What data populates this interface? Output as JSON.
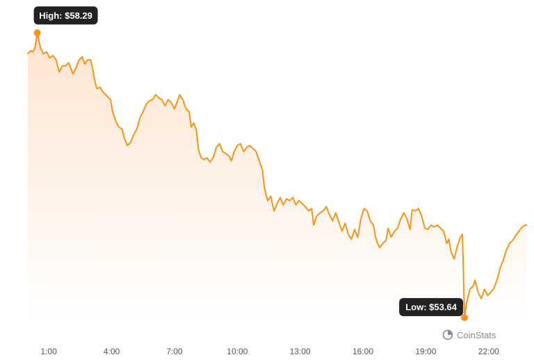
{
  "chart_data": {
    "type": "area",
    "xlabel": "",
    "ylabel": "",
    "x_tick_labels": [
      "1:00",
      "4:00",
      "7:00",
      "10:00",
      "13:00",
      "16:00",
      "19:00",
      "22:00"
    ],
    "x_tick_hours": [
      1,
      4,
      7,
      10,
      13,
      16,
      19,
      22
    ],
    "x_range_hours": [
      0,
      23.8
    ],
    "ylim": [
      53.55,
      58.6
    ],
    "grid": false,
    "line_color": "#f7931a",
    "fill_color": "#fde3cc",
    "series": [
      {
        "points": [
          [
            0.0,
            57.95
          ],
          [
            0.15,
            58.0
          ],
          [
            0.25,
            57.98
          ],
          [
            0.35,
            58.05
          ],
          [
            0.45,
            58.29
          ],
          [
            0.6,
            58.05
          ],
          [
            0.75,
            57.95
          ],
          [
            0.9,
            57.98
          ],
          [
            1.05,
            57.88
          ],
          [
            1.2,
            57.92
          ],
          [
            1.35,
            57.85
          ],
          [
            1.5,
            57.65
          ],
          [
            1.65,
            57.75
          ],
          [
            1.8,
            57.75
          ],
          [
            1.95,
            57.8
          ],
          [
            2.05,
            57.72
          ],
          [
            2.15,
            57.62
          ],
          [
            2.3,
            57.72
          ],
          [
            2.45,
            57.85
          ],
          [
            2.6,
            57.9
          ],
          [
            2.72,
            57.78
          ],
          [
            2.85,
            57.85
          ],
          [
            3.0,
            57.85
          ],
          [
            3.1,
            57.7
          ],
          [
            3.2,
            57.5
          ],
          [
            3.3,
            57.38
          ],
          [
            3.45,
            57.4
          ],
          [
            3.6,
            57.32
          ],
          [
            3.8,
            57.25
          ],
          [
            3.95,
            57.2
          ],
          [
            4.05,
            57.0
          ],
          [
            4.2,
            56.85
          ],
          [
            4.35,
            56.75
          ],
          [
            4.5,
            56.72
          ],
          [
            4.6,
            56.58
          ],
          [
            4.75,
            56.45
          ],
          [
            4.9,
            56.5
          ],
          [
            5.05,
            56.62
          ],
          [
            5.2,
            56.72
          ],
          [
            5.35,
            56.9
          ],
          [
            5.5,
            57.0
          ],
          [
            5.65,
            57.12
          ],
          [
            5.8,
            57.18
          ],
          [
            5.95,
            57.2
          ],
          [
            6.1,
            57.28
          ],
          [
            6.25,
            57.23
          ],
          [
            6.4,
            57.2
          ],
          [
            6.55,
            57.1
          ],
          [
            6.7,
            57.2
          ],
          [
            6.85,
            57.15
          ],
          [
            7.0,
            57.05
          ],
          [
            7.12,
            57.15
          ],
          [
            7.25,
            57.28
          ],
          [
            7.4,
            57.2
          ],
          [
            7.55,
            57.05
          ],
          [
            7.7,
            57.0
          ],
          [
            7.8,
            56.75
          ],
          [
            7.92,
            56.82
          ],
          [
            8.05,
            56.7
          ],
          [
            8.15,
            56.38
          ],
          [
            8.28,
            56.25
          ],
          [
            8.4,
            56.22
          ],
          [
            8.55,
            56.25
          ],
          [
            8.7,
            56.18
          ],
          [
            8.85,
            56.25
          ],
          [
            9.0,
            56.42
          ],
          [
            9.15,
            56.48
          ],
          [
            9.3,
            56.35
          ],
          [
            9.45,
            56.32
          ],
          [
            9.6,
            56.28
          ],
          [
            9.72,
            56.2
          ],
          [
            9.85,
            56.35
          ],
          [
            10.0,
            56.45
          ],
          [
            10.15,
            56.48
          ],
          [
            10.3,
            56.35
          ],
          [
            10.45,
            56.42
          ],
          [
            10.6,
            56.45
          ],
          [
            10.75,
            56.4
          ],
          [
            10.9,
            56.35
          ],
          [
            11.05,
            56.2
          ],
          [
            11.2,
            56.05
          ],
          [
            11.3,
            55.75
          ],
          [
            11.45,
            55.55
          ],
          [
            11.6,
            55.62
          ],
          [
            11.75,
            55.38
          ],
          [
            11.9,
            55.5
          ],
          [
            12.05,
            55.6
          ],
          [
            12.2,
            55.48
          ],
          [
            12.35,
            55.58
          ],
          [
            12.5,
            55.55
          ],
          [
            12.65,
            55.6
          ],
          [
            12.8,
            55.48
          ],
          [
            12.95,
            55.55
          ],
          [
            13.1,
            55.5
          ],
          [
            13.25,
            55.45
          ],
          [
            13.4,
            55.38
          ],
          [
            13.55,
            55.42
          ],
          [
            13.65,
            55.15
          ],
          [
            13.8,
            55.3
          ],
          [
            13.95,
            55.35
          ],
          [
            14.1,
            55.38
          ],
          [
            14.25,
            55.45
          ],
          [
            14.4,
            55.32
          ],
          [
            14.55,
            55.22
          ],
          [
            14.7,
            55.35
          ],
          [
            14.85,
            55.2
          ],
          [
            15.0,
            55.05
          ],
          [
            15.15,
            55.18
          ],
          [
            15.3,
            55.0
          ],
          [
            15.45,
            54.92
          ],
          [
            15.6,
            55.08
          ],
          [
            15.75,
            54.95
          ],
          [
            15.9,
            55.25
          ],
          [
            16.05,
            55.42
          ],
          [
            16.2,
            55.38
          ],
          [
            16.35,
            55.22
          ],
          [
            16.5,
            55.15
          ],
          [
            16.6,
            54.95
          ],
          [
            16.7,
            54.85
          ],
          [
            16.8,
            54.78
          ],
          [
            16.95,
            54.85
          ],
          [
            17.1,
            54.9
          ],
          [
            17.2,
            55.1
          ],
          [
            17.35,
            54.95
          ],
          [
            17.5,
            55.05
          ],
          [
            17.65,
            55.1
          ],
          [
            17.8,
            55.25
          ],
          [
            17.95,
            55.35
          ],
          [
            18.1,
            55.25
          ],
          [
            18.25,
            55.08
          ],
          [
            18.35,
            55.4
          ],
          [
            18.5,
            55.38
          ],
          [
            18.65,
            55.42
          ],
          [
            18.8,
            55.3
          ],
          [
            18.95,
            55.1
          ],
          [
            19.1,
            55.08
          ],
          [
            19.25,
            55.15
          ],
          [
            19.4,
            55.12
          ],
          [
            19.55,
            55.15
          ],
          [
            19.7,
            55.1
          ],
          [
            19.85,
            55.05
          ],
          [
            20.0,
            54.85
          ],
          [
            20.1,
            54.92
          ],
          [
            20.2,
            54.72
          ],
          [
            20.35,
            54.6
          ],
          [
            20.5,
            54.8
          ],
          [
            20.65,
            54.95
          ],
          [
            20.75,
            55.0
          ],
          [
            20.85,
            53.64
          ],
          [
            20.95,
            53.88
          ],
          [
            21.1,
            54.1
          ],
          [
            21.25,
            54.15
          ],
          [
            21.35,
            54.25
          ],
          [
            21.5,
            54.05
          ],
          [
            21.65,
            53.95
          ],
          [
            21.8,
            54.1
          ],
          [
            21.95,
            54.0
          ],
          [
            22.1,
            54.05
          ],
          [
            22.25,
            54.12
          ],
          [
            22.4,
            54.25
          ],
          [
            22.55,
            54.45
          ],
          [
            22.7,
            54.58
          ],
          [
            22.85,
            54.75
          ],
          [
            23.0,
            54.85
          ],
          [
            23.15,
            54.9
          ],
          [
            23.3,
            54.98
          ],
          [
            23.45,
            55.05
          ],
          [
            23.6,
            55.12
          ],
          [
            23.75,
            55.15
          ],
          [
            23.8,
            55.15
          ]
        ]
      }
    ],
    "annotations": [
      {
        "label": "High: $58.29",
        "x": 0.45,
        "y": 58.29
      },
      {
        "label": "Low: $53.64",
        "x": 20.85,
        "y": 53.64
      }
    ]
  },
  "watermark": {
    "text": "CoinStats",
    "icon": "coinstats-logo-icon"
  }
}
